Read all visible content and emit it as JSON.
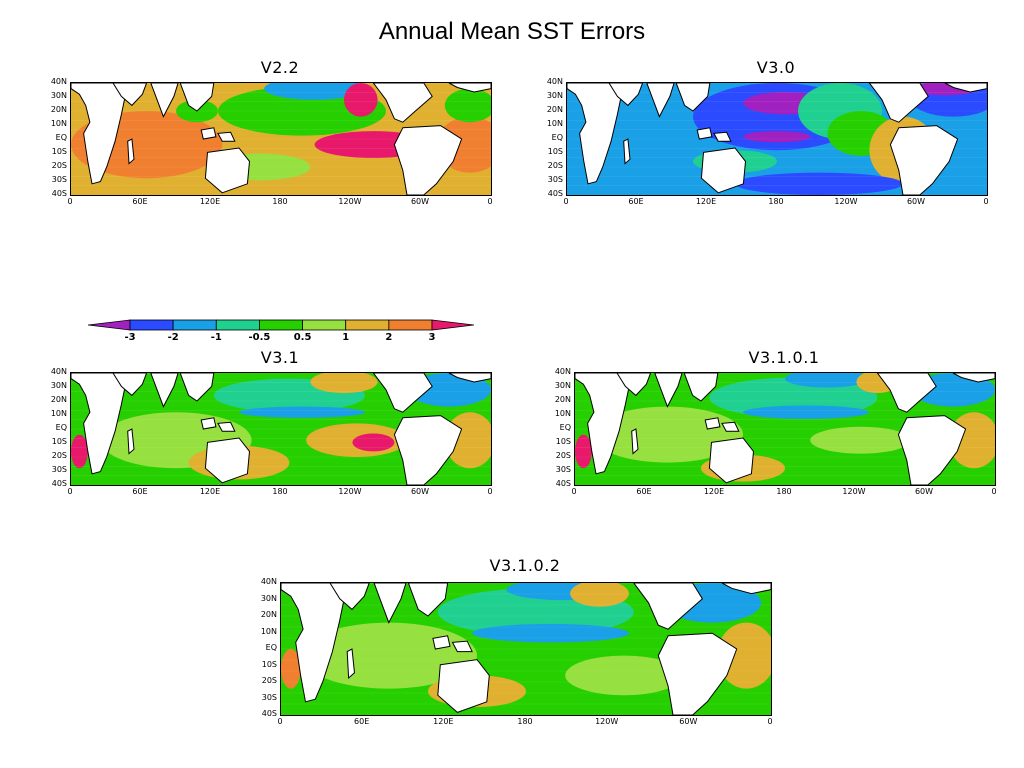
{
  "title": "Annual Mean SST Errors",
  "panels": [
    {
      "name": "V2.2",
      "pattern": "warm"
    },
    {
      "name": "V3.0",
      "pattern": "cold"
    },
    {
      "name": "V3.1",
      "pattern": "mixed"
    },
    {
      "name": "V3.1.0.1",
      "pattern": "mixed2"
    },
    {
      "name": "V3.1.0.2",
      "pattern": "mixed3"
    }
  ],
  "lat_labels": [
    "40N",
    "30N",
    "20N",
    "10N",
    "EQ",
    "10S",
    "20S",
    "30S",
    "40S"
  ],
  "lon_labels": [
    "0",
    "60E",
    "120E",
    "180",
    "120W",
    "60W",
    "0"
  ],
  "colorbar": {
    "labels": [
      "-3",
      "-2",
      "-1",
      "-0.5",
      "0.5",
      "1",
      "2",
      "3"
    ],
    "colors": [
      "#a020c0",
      "#2a4bff",
      "#1aa0e6",
      "#20d090",
      "#26d000",
      "#96e040",
      "#e0b030",
      "#f08030",
      "#e8186a"
    ]
  },
  "colors": {
    "land": "#ffffff",
    "deep_neg": "#a020c0",
    "neg2": "#2a4bff",
    "neg1": "#1aa0e6",
    "neg05": "#20d090",
    "zero": "#26d000",
    "pos05": "#96e040",
    "pos1": "#e0b030",
    "pos2": "#f08030",
    "pos3": "#e8186a"
  }
}
